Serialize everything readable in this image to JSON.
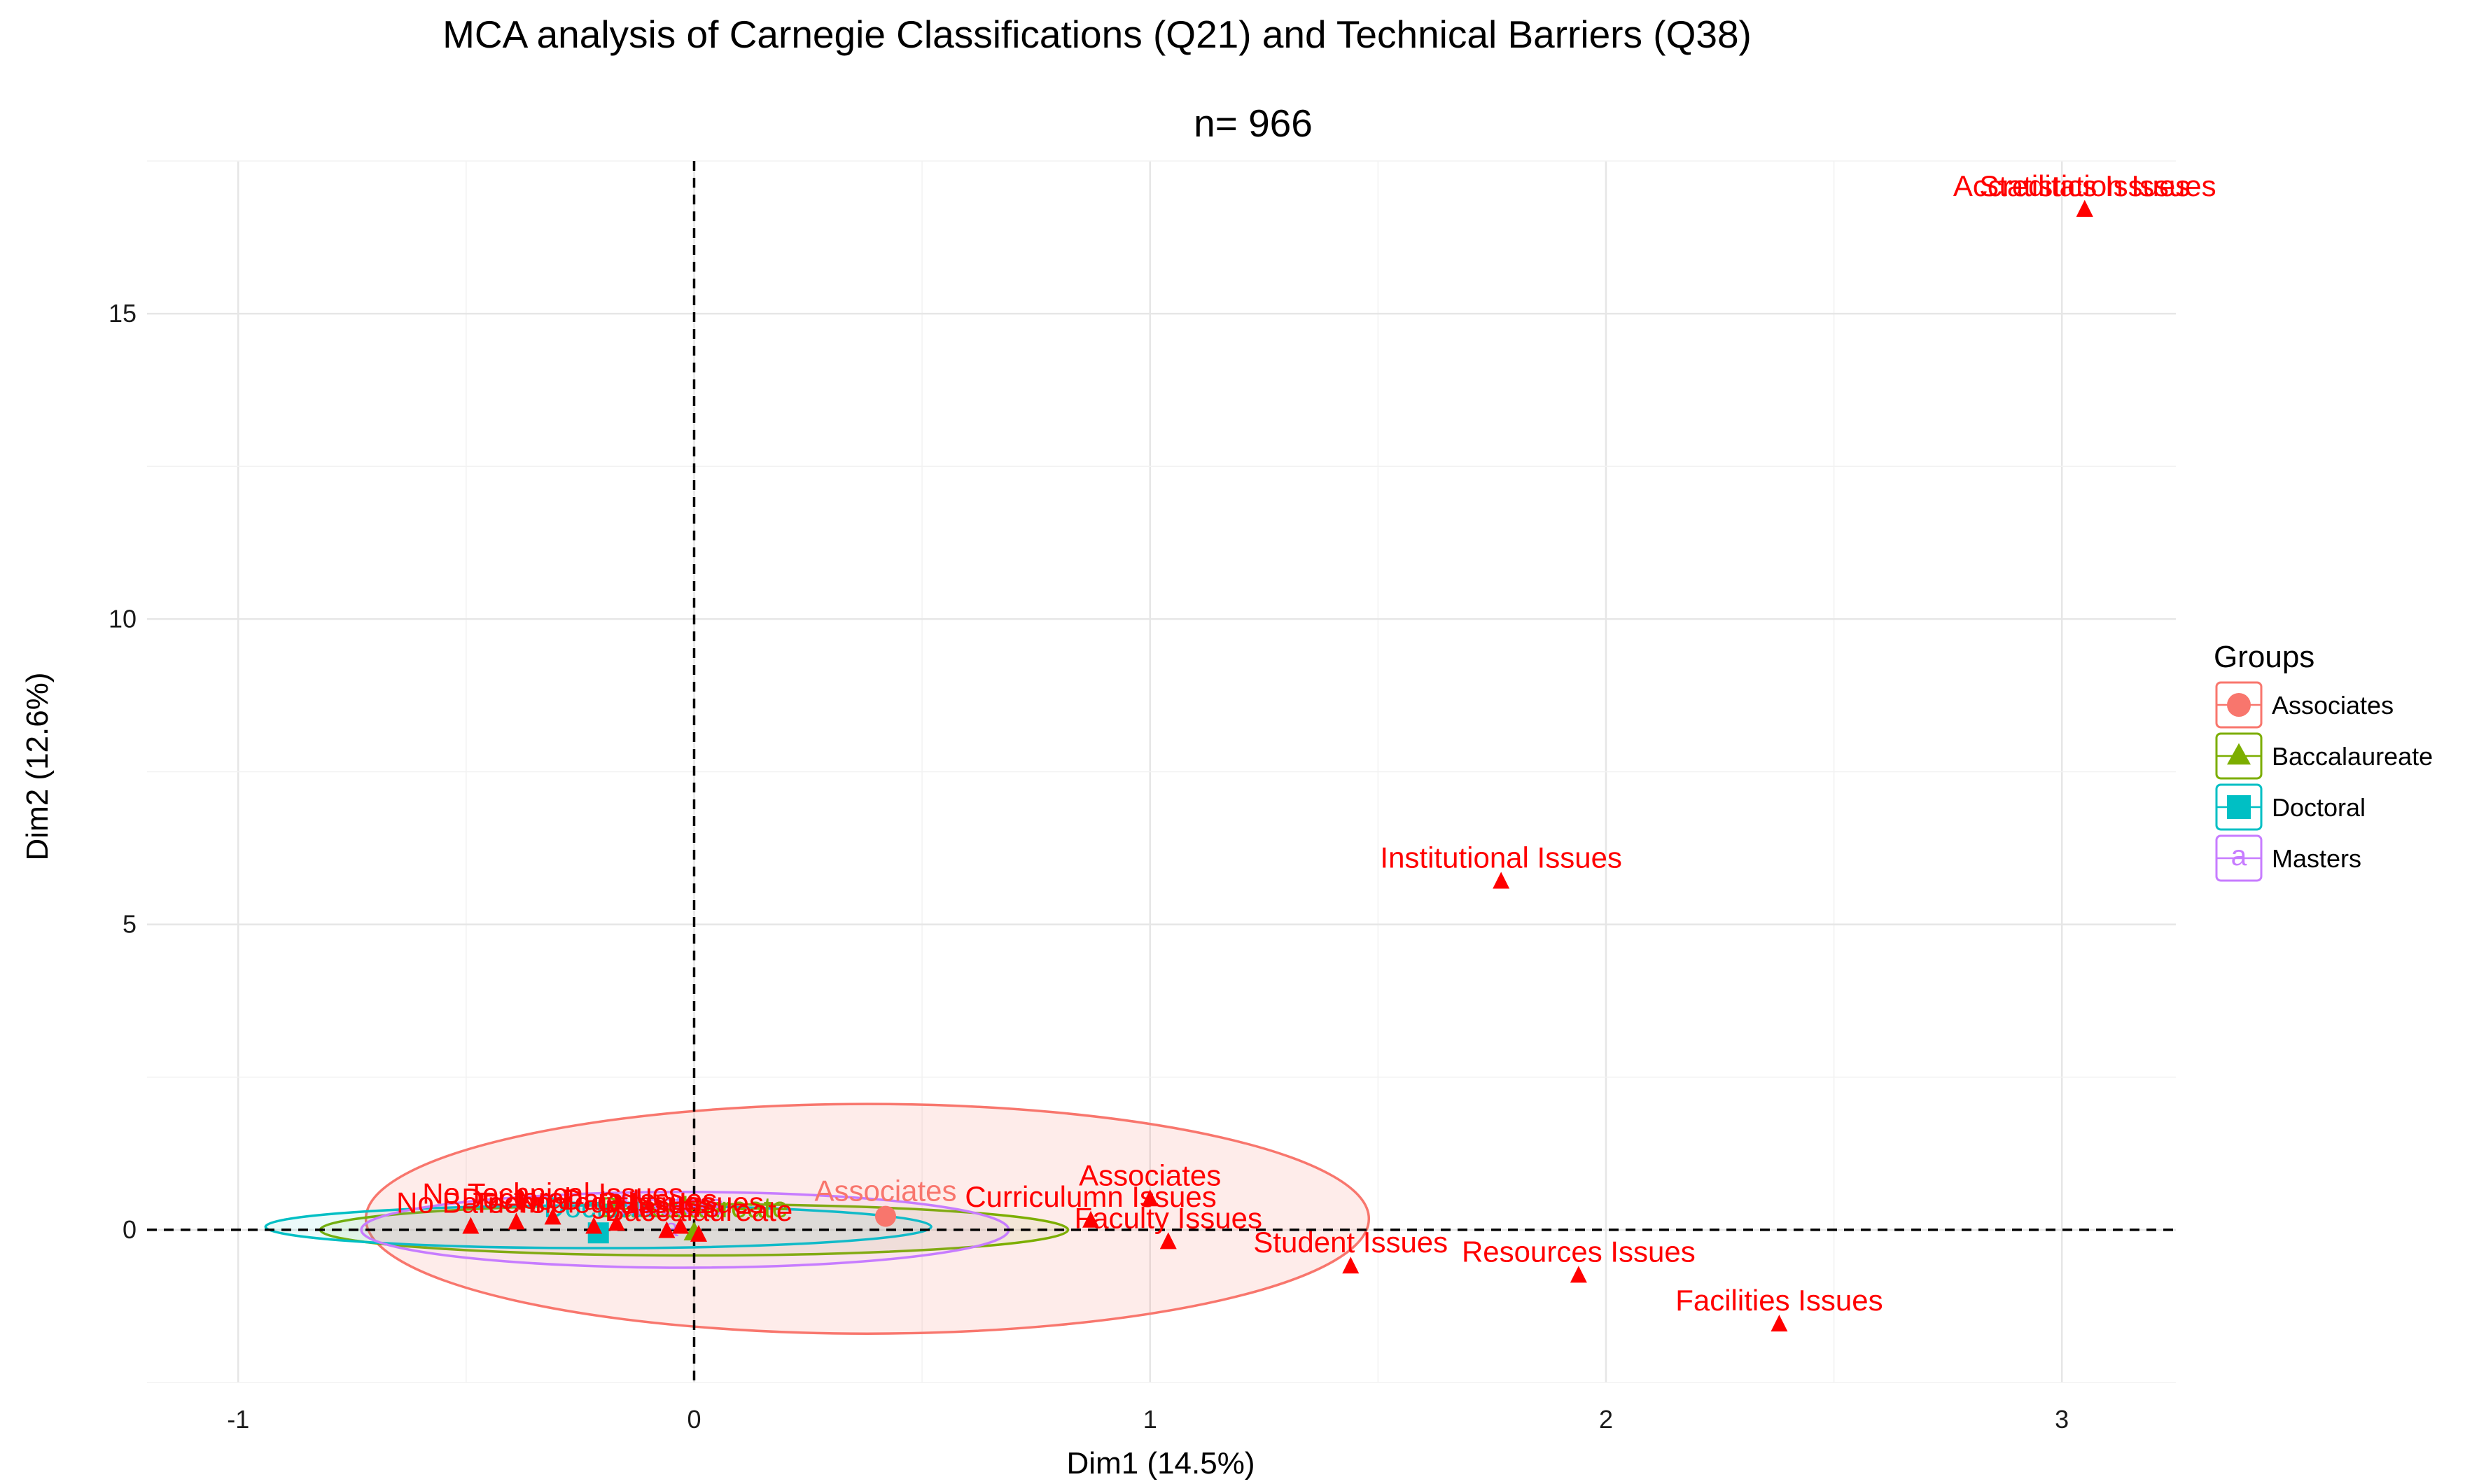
{
  "chart_data": {
    "type": "scatter",
    "title": "MCA analysis of Carnegie Classifications (Q21) and Technical Barriers (Q38)",
    "subtitle": "n= 966",
    "xlabel": "Dim1 (14.5%)",
    "ylabel": "Dim2 (12.6%)",
    "xlim": [
      -1.2,
      3.25
    ],
    "ylim": [
      -2.5,
      17.5
    ],
    "xticks": [
      -1,
      0,
      1,
      2,
      3
    ],
    "xtick_labels": [
      "-1",
      "0",
      "1",
      "2",
      "3"
    ],
    "yticks": [
      0,
      5,
      10,
      15
    ],
    "ytick_labels": [
      "0",
      "5",
      "10",
      "15"
    ],
    "grid": true,
    "reference_lines": {
      "x": 0,
      "y": 0,
      "style": "dashed"
    },
    "legend": {
      "title": "Groups",
      "placement": "right",
      "entries": [
        {
          "name": "Associates",
          "color": "#F8766D",
          "shape": "circle"
        },
        {
          "name": "Baccalaureate",
          "color": "#7CAE00",
          "shape": "triangle"
        },
        {
          "name": "Doctoral",
          "color": "#00BFC4",
          "shape": "square"
        },
        {
          "name": "Masters",
          "color": "#C77CFF",
          "shape": "a"
        }
      ]
    },
    "variable_color": "#FF0000",
    "variables": [
      {
        "label": "Accreditation Issues",
        "x": 3.05,
        "y": 16.7
      },
      {
        "label": "Statistics Issues",
        "x": 3.05,
        "y": 16.7
      },
      {
        "label": "Institutional Issues",
        "x": 1.77,
        "y": 5.7
      },
      {
        "label": "Associates",
        "x": 1.0,
        "y": 0.5
      },
      {
        "label": "Curriculumn Issues",
        "x": 0.87,
        "y": 0.15
      },
      {
        "label": "Faculty Issues",
        "x": 1.04,
        "y": -0.2
      },
      {
        "label": "Student Issues",
        "x": 1.44,
        "y": -0.6
      },
      {
        "label": "Resources Issues",
        "x": 1.94,
        "y": -0.75
      },
      {
        "label": "Facilities Issues",
        "x": 2.38,
        "y": -1.55
      },
      {
        "label": "No Barriers",
        "x": -0.49,
        "y": 0.05
      },
      {
        "label": "Doctoral",
        "x": -0.39,
        "y": 0.12
      },
      {
        "label": "No Technical Issues",
        "x": -0.31,
        "y": 0.2
      },
      {
        "label": "Technology Issues",
        "x": -0.22,
        "y": 0.05
      },
      {
        "label": "No Data Issues",
        "x": -0.17,
        "y": 0.1
      },
      {
        "label": "Masters",
        "x": -0.06,
        "y": -0.02
      },
      {
        "label": "Other Issues",
        "x": -0.03,
        "y": 0.05
      },
      {
        "label": "Baccalaureate",
        "x": 0.01,
        "y": -0.08
      }
    ],
    "groups": [
      {
        "name": "Associates",
        "color": "#F8766D",
        "shape": "circle",
        "center": [
          0.42,
          0.22
        ],
        "ellipse": {
          "cx": 0.38,
          "cy": 0.18,
          "rx": 1.1,
          "ry": 1.88,
          "angle_deg": 0
        },
        "label": "Associates"
      },
      {
        "name": "Baccalaureate",
        "color": "#7CAE00",
        "shape": "triangle",
        "center": [
          0.0,
          -0.05
        ],
        "ellipse": {
          "cx": 0.0,
          "cy": 0.0,
          "rx": 0.82,
          "ry": 0.42,
          "angle_deg": 0
        },
        "label": "Baccalaureate"
      },
      {
        "name": "Doctoral",
        "color": "#00BFC4",
        "shape": "square",
        "center": [
          -0.21,
          -0.05
        ],
        "ellipse": {
          "cx": -0.21,
          "cy": 0.05,
          "rx": 0.73,
          "ry": 0.35,
          "angle_deg": 0
        },
        "label": "Doctoral"
      },
      {
        "name": "Masters",
        "color": "#C77CFF",
        "shape": "a",
        "center": [
          -0.05,
          0.0
        ],
        "ellipse": {
          "cx": -0.02,
          "cy": 0.0,
          "rx": 0.71,
          "ry": 0.62,
          "angle_deg": 0
        },
        "label": "Masters"
      }
    ]
  }
}
